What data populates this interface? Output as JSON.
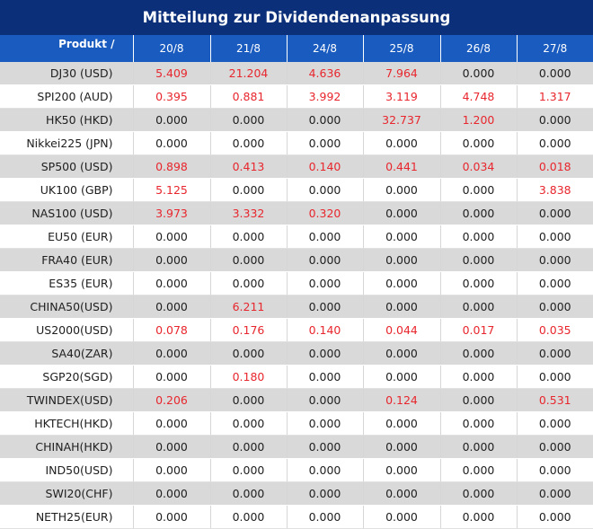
{
  "title": "Mitteilung zur Dividendenanpassung",
  "header": {
    "product_label": "Produkt /",
    "dates": [
      "20/8",
      "21/8",
      "24/8",
      "25/8",
      "26/8",
      "27/8"
    ]
  },
  "colors": {
    "title_bg": "#0b2f79",
    "header_bg": "#1a5bbf",
    "highlight": "#e8262d",
    "alt_row": "#d9d9d9"
  },
  "rows": [
    {
      "product": "DJ30 (USD)",
      "values": [
        "5.409",
        "21.204",
        "4.636",
        "7.964",
        "0.000",
        "0.000"
      ]
    },
    {
      "product": "SPI200 (AUD)",
      "values": [
        "0.395",
        "0.881",
        "3.992",
        "3.119",
        "4.748",
        "1.317"
      ]
    },
    {
      "product": "HK50 (HKD)",
      "values": [
        "0.000",
        "0.000",
        "0.000",
        "32.737",
        "1.200",
        "0.000"
      ]
    },
    {
      "product": "Nikkei225 (JPN)",
      "values": [
        "0.000",
        "0.000",
        "0.000",
        "0.000",
        "0.000",
        "0.000"
      ]
    },
    {
      "product": "SP500 (USD)",
      "values": [
        "0.898",
        "0.413",
        "0.140",
        "0.441",
        "0.034",
        "0.018"
      ]
    },
    {
      "product": "UK100 (GBP)",
      "values": [
        "5.125",
        "0.000",
        "0.000",
        "0.000",
        "0.000",
        "3.838"
      ]
    },
    {
      "product": "NAS100 (USD)",
      "values": [
        "3.973",
        "3.332",
        "0.320",
        "0.000",
        "0.000",
        "0.000"
      ]
    },
    {
      "product": "EU50 (EUR)",
      "values": [
        "0.000",
        "0.000",
        "0.000",
        "0.000",
        "0.000",
        "0.000"
      ]
    },
    {
      "product": "FRA40 (EUR)",
      "values": [
        "0.000",
        "0.000",
        "0.000",
        "0.000",
        "0.000",
        "0.000"
      ]
    },
    {
      "product": "ES35 (EUR)",
      "values": [
        "0.000",
        "0.000",
        "0.000",
        "0.000",
        "0.000",
        "0.000"
      ]
    },
    {
      "product": "CHINA50(USD)",
      "values": [
        "0.000",
        "6.211",
        "0.000",
        "0.000",
        "0.000",
        "0.000"
      ]
    },
    {
      "product": "US2000(USD)",
      "values": [
        "0.078",
        "0.176",
        "0.140",
        "0.044",
        "0.017",
        "0.035"
      ]
    },
    {
      "product": "SA40(ZAR)",
      "values": [
        "0.000",
        "0.000",
        "0.000",
        "0.000",
        "0.000",
        "0.000"
      ]
    },
    {
      "product": "SGP20(SGD)",
      "values": [
        "0.000",
        "0.180",
        "0.000",
        "0.000",
        "0.000",
        "0.000"
      ]
    },
    {
      "product": "TWINDEX(USD)",
      "values": [
        "0.206",
        "0.000",
        "0.000",
        "0.124",
        "0.000",
        "0.531"
      ]
    },
    {
      "product": "HKTECH(HKD)",
      "values": [
        "0.000",
        "0.000",
        "0.000",
        "0.000",
        "0.000",
        "0.000"
      ]
    },
    {
      "product": "CHINAH(HKD)",
      "values": [
        "0.000",
        "0.000",
        "0.000",
        "0.000",
        "0.000",
        "0.000"
      ]
    },
    {
      "product": "IND50(USD)",
      "values": [
        "0.000",
        "0.000",
        "0.000",
        "0.000",
        "0.000",
        "0.000"
      ]
    },
    {
      "product": "SWI20(CHF)",
      "values": [
        "0.000",
        "0.000",
        "0.000",
        "0.000",
        "0.000",
        "0.000"
      ]
    },
    {
      "product": "NETH25(EUR)",
      "values": [
        "0.000",
        "0.000",
        "0.000",
        "0.000",
        "0.000",
        "0.000"
      ]
    }
  ]
}
